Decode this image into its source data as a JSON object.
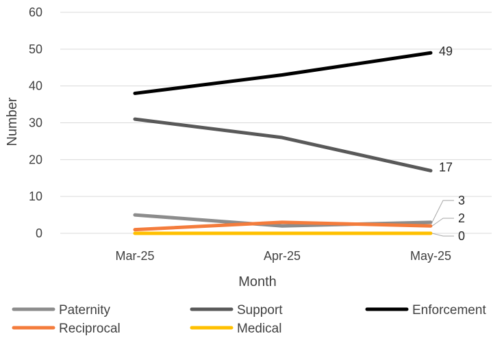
{
  "chart_data": {
    "type": "line",
    "title": "",
    "xlabel": "Month",
    "ylabel": "Number",
    "categories": [
      "Mar-25",
      "Apr-25",
      "May-25"
    ],
    "ylim": [
      0,
      60
    ],
    "yticks": [
      0,
      10,
      20,
      30,
      40,
      50,
      60
    ],
    "grid": "horizontal",
    "legend_position": "bottom",
    "series": [
      {
        "name": "Paternity",
        "values": [
          5,
          2,
          3
        ],
        "color": "#8c8c8c",
        "end_label": "3"
      },
      {
        "name": "Support",
        "values": [
          31,
          26,
          17
        ],
        "color": "#595959",
        "end_label": "17"
      },
      {
        "name": "Enforcement",
        "values": [
          38,
          43,
          49
        ],
        "color": "#000000",
        "end_label": "49"
      },
      {
        "name": "Reciprocal",
        "values": [
          1,
          3,
          2
        ],
        "color": "#f47c3c",
        "end_label": "2"
      },
      {
        "name": "Medical",
        "values": [
          0,
          0,
          0
        ],
        "color": "#ffc000",
        "end_label": "0"
      }
    ]
  }
}
